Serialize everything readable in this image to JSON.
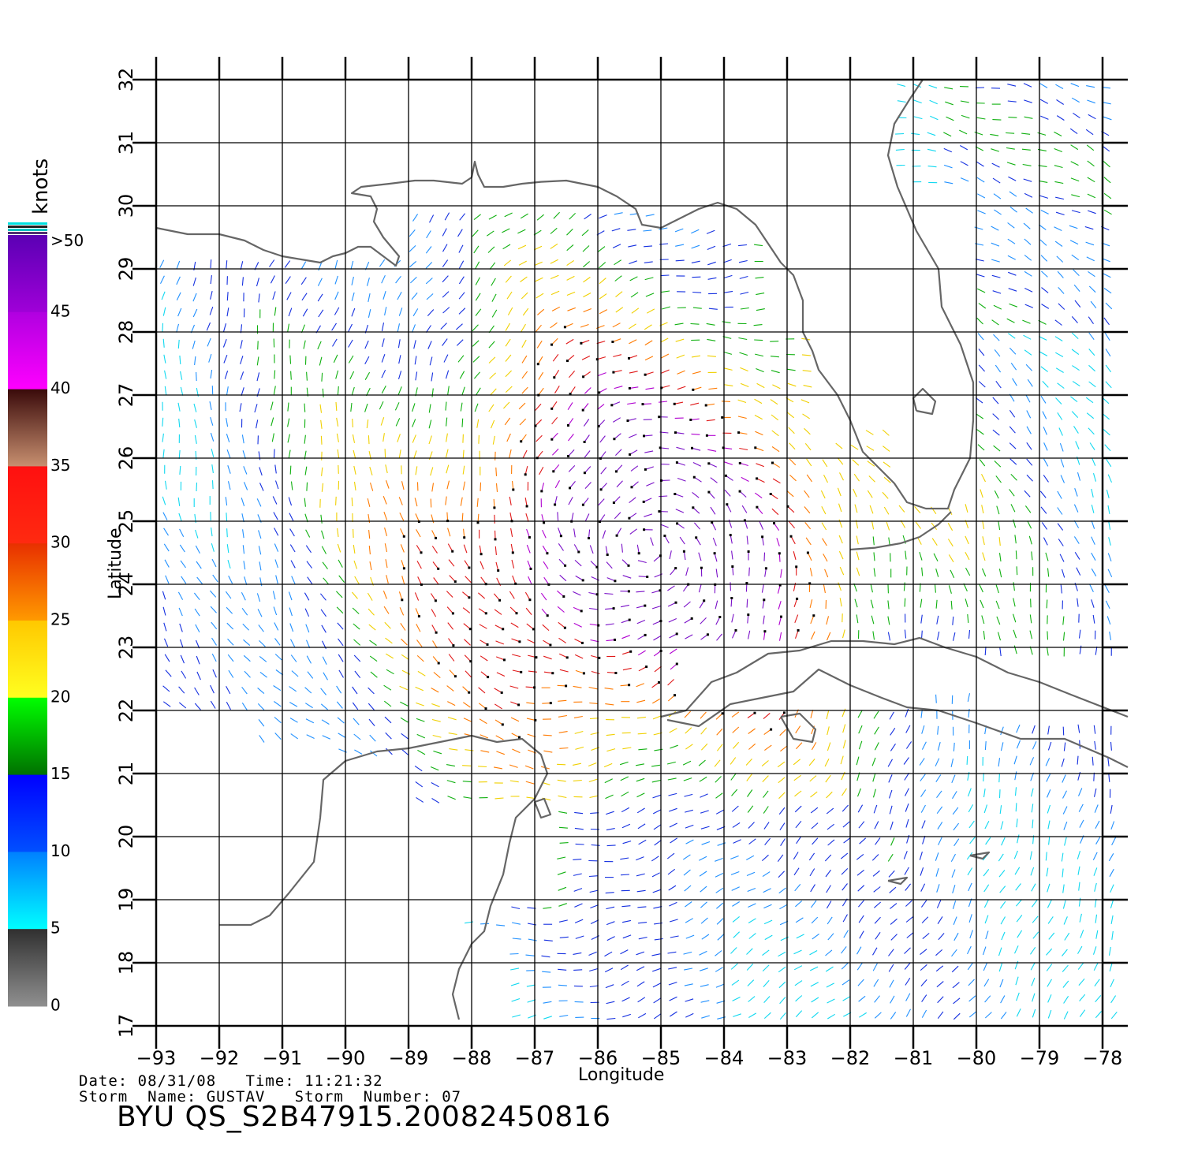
{
  "map": {
    "x_label": "Longitude",
    "y_label": "Latitude",
    "lon_ticks": [
      "-93",
      "-92",
      "-91",
      "-90",
      "-89",
      "-88",
      "-87",
      "-86",
      "-85",
      "-84",
      "-83",
      "-82",
      "-81",
      "-80",
      "-79",
      "-78"
    ],
    "lat_ticks": [
      "17",
      "18",
      "19",
      "20",
      "21",
      "22",
      "23",
      "24",
      "25",
      "26",
      "27",
      "28",
      "29",
      "30",
      "31",
      "32"
    ],
    "lon_range": [
      -93,
      -77.6
    ],
    "lat_range": [
      17,
      32
    ],
    "coastline_color": "#666666",
    "grid_color": "#000000"
  },
  "colorbar": {
    "unit": "knots",
    "top_label": ">50",
    "labels": [
      "45",
      "40",
      "35",
      "30",
      "25",
      "20",
      "15",
      "10",
      "5",
      "0"
    ],
    "bands": [
      {
        "from": 45,
        "to": 50,
        "top": "#5a00b4",
        "bottom": "#a000d8"
      },
      {
        "from": 40,
        "to": 45,
        "top": "#b000e0",
        "bottom": "#ff00ff"
      },
      {
        "from": 35,
        "to": 40,
        "top": "#3a0a0a",
        "bottom": "#c89070"
      },
      {
        "from": 30,
        "to": 35,
        "top": "#ff1010",
        "bottom": "#ff2a10"
      },
      {
        "from": 25,
        "to": 30,
        "top": "#e83000",
        "bottom": "#ff9a00"
      },
      {
        "from": 20,
        "to": 25,
        "top": "#ffc800",
        "bottom": "#ffff20"
      },
      {
        "from": 15,
        "to": 20,
        "top": "#00ff00",
        "bottom": "#007000"
      },
      {
        "from": 10,
        "to": 15,
        "top": "#0000ff",
        "bottom": "#0050ff"
      },
      {
        "from": 5,
        "to": 10,
        "top": "#0080ff",
        "bottom": "#00ffff"
      },
      {
        "from": 0,
        "to": 5,
        "top": "#303030",
        "bottom": "#909090"
      }
    ]
  },
  "storm_center": {
    "lon": -85.3,
    "lat": 24.6
  },
  "info": {
    "line1": "Date: 08/31/08   Time: 11:21:32",
    "line2": "Storm  Name: GUSTAV   Storm  Number: 07",
    "title": "BYU  QS_S2B47915.20082450816"
  }
}
